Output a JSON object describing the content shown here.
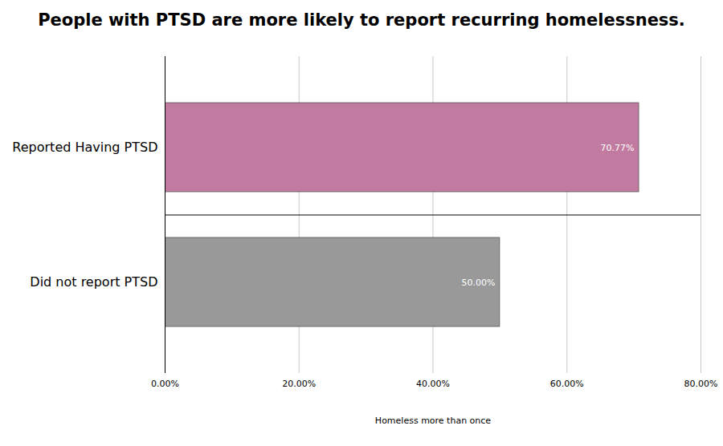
{
  "chart_data": {
    "type": "bar",
    "title": "People with PTSD are more likely to report recurring homelessness.",
    "orientation": "horizontal",
    "categories": [
      "Reported Having PTSD",
      "Did not report PTSD"
    ],
    "values": [
      70.77,
      50
    ],
    "value_labels": [
      "70.77%",
      "50.00%"
    ],
    "colors": [
      "#c27ba0",
      "#999999"
    ],
    "x_label": "Homeless more than once",
    "xlim": [
      0,
      80
    ],
    "xticks": [
      {
        "value": 0,
        "label": "0.00%"
      },
      {
        "value": 20,
        "label": "20.00%"
      },
      {
        "value": 40,
        "label": "40.00%"
      },
      {
        "value": 60,
        "label": "60.00%"
      },
      {
        "value": 80,
        "label": "80.00%"
      }
    ],
    "grid": true,
    "data_labels": true
  }
}
